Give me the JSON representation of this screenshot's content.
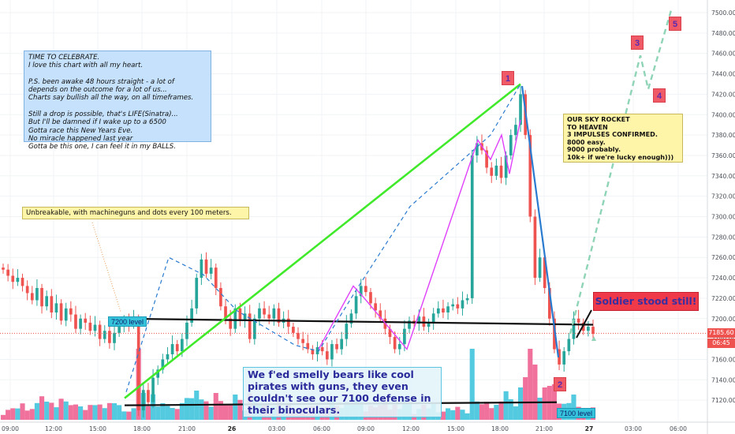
{
  "chart_data": {
    "type": "candlestick",
    "y_axis": {
      "ticks": [
        7120,
        7140,
        7160,
        7180,
        7200,
        7220,
        7240,
        7260,
        7280,
        7300,
        7320,
        7340,
        7360,
        7380,
        7400,
        7420,
        7440,
        7460,
        7480,
        7500
      ],
      "range": [
        7108,
        7510
      ]
    },
    "x_axis": {
      "ticks": [
        "09:00",
        "12:00",
        "15:00",
        "18:00",
        "21:00",
        "26",
        "03:00",
        "06:00",
        "09:00",
        "12:00",
        "15:00",
        "18:00",
        "21:00",
        "27",
        "03:00",
        "06:00"
      ]
    },
    "series": [
      {
        "name": "price",
        "close": [
          7248,
          7242,
          7236,
          7240,
          7232,
          7225,
          7218,
          7230,
          7212,
          7222,
          7206,
          7215,
          7198,
          7210,
          7204,
          7190,
          7200,
          7196,
          7188,
          7194,
          7180,
          7188,
          7176,
          7186,
          7192,
          7198,
          7194,
          7200,
          7110,
          7130,
          7118,
          7142,
          7150,
          7160,
          7165,
          7175,
          7168,
          7180,
          7196,
          7210,
          7240,
          7258,
          7244,
          7250,
          7230,
          7212,
          7200,
          7190,
          7210,
          7198,
          7205,
          7180,
          7200,
          7210,
          7204,
          7200,
          7210,
          7196,
          7200,
          7192,
          7186,
          7180,
          7176,
          7170,
          7165,
          7172,
          7168,
          7160,
          7175,
          7170,
          7180,
          7195,
          7205,
          7222,
          7232,
          7226,
          7215,
          7208,
          7200,
          7190,
          7182,
          7170,
          7175,
          7190,
          7198,
          7195,
          7202,
          7192,
          7196,
          7205,
          7210,
          7206,
          7212,
          7214,
          7210,
          7218,
          7220,
          7360,
          7372,
          7365,
          7348,
          7340,
          7350,
          7338,
          7360,
          7380,
          7390,
          7420,
          7380,
          7300,
          7240,
          7260,
          7230,
          7200,
          7170,
          7155,
          7168,
          7180,
          7200,
          7196,
          7188,
          7192,
          7185
        ]
      },
      {
        "name": "projection",
        "path": [
          [
            7185,
            "27"
          ],
          [
            7460,
            "03:00"
          ],
          [
            7420,
            "03:30"
          ],
          [
            7505,
            "06:00"
          ]
        ]
      }
    ],
    "levels": [
      {
        "label": "7200 level",
        "value": 7197
      },
      {
        "label": "7100 level",
        "value": 7115
      }
    ],
    "waves": [
      "1",
      "2",
      "3",
      "4",
      "5"
    ],
    "current": {
      "price": "7185.60",
      "countdown": "06:45"
    }
  },
  "annotations": {
    "celebrate": [
      "TIME TO CELEBRATE.",
      "I love this chart with all my heart.",
      "",
      "P.S. been awake 48 hours straight - a lot of",
      "depends on the outcome for a lot of us...",
      "Charts say bullish all the way, on all timeframes.",
      "",
      "Still a drop is possible, that's LIFE(Sinatra)...",
      "But I'll be damned if I wake up to a 6500",
      "Gotta race this New Years Eve.",
      "No miracle happened last year",
      "Gotta be this one, I can feel it in my BALLS."
    ],
    "unbreakable": "Unbreakable, with machineguns and dots every 100 meters.",
    "rocket": [
      "OUR SKY ROCKET",
      "TO HEAVEN",
      "3 IMPULSES CONFIRMED.",
      "8000 easy.",
      "9000 probably.",
      "10k+ if we're lucky enough)))"
    ],
    "bears": [
      "We f'ed smelly bears like cool",
      "pirates with guns, they even",
      "couldn't see our 7100 defense in",
      "their binoculars."
    ],
    "soldier": "Soldier stood still!",
    "level_7200": "7200 level",
    "level_7100": "7100 level"
  },
  "colors": {
    "up": "#26a69a",
    "down": "#ef5350",
    "volume_up": "#40c4dc",
    "volume_down": "#f06292",
    "green_line": "#40ea2a",
    "impulse": "#e040fb",
    "dashed": "#2a7bd0",
    "projection": "#8fd4b6"
  }
}
